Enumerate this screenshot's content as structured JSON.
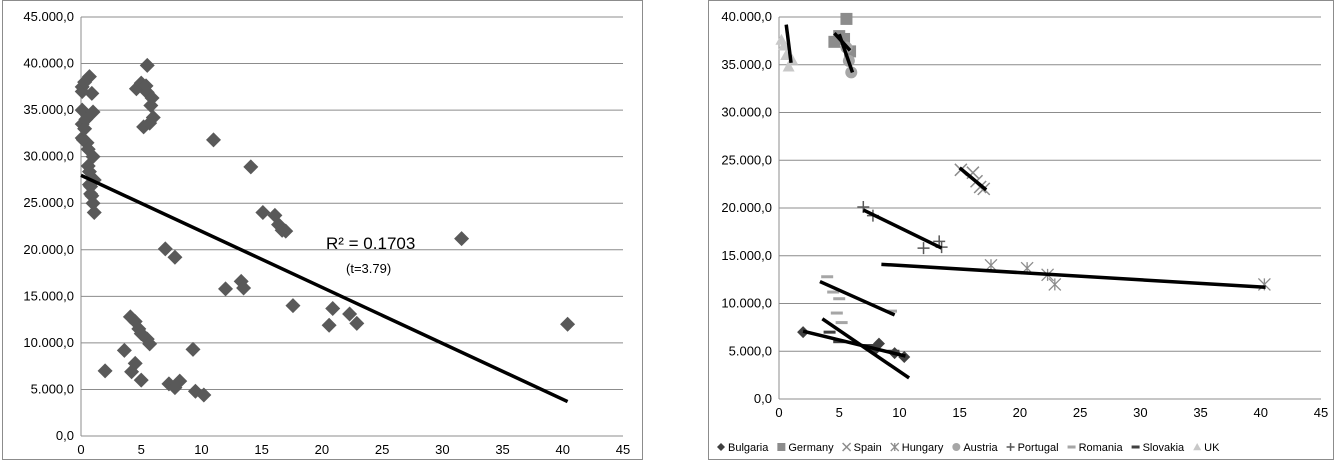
{
  "chart_data": [
    {
      "type": "scatter",
      "title": "",
      "xlabel": "",
      "ylabel": "",
      "xlim": [
        0,
        45
      ],
      "ylim": [
        0,
        45000
      ],
      "x_ticks": [
        "0",
        "5",
        "10",
        "15",
        "20",
        "25",
        "30",
        "35",
        "40",
        "45"
      ],
      "y_ticks": [
        "0,0",
        "5.000,0",
        "10.000,0",
        "15.000,0",
        "20.000,0",
        "25.000,0",
        "30.000,0",
        "35.000,0",
        "40.000,0",
        "45.000,0"
      ],
      "grid": "horizontal",
      "marker": "diamond",
      "marker_color": "#595959",
      "line_color": "#000000",
      "points": [
        [
          0.1,
          37500
        ],
        [
          0.1,
          37000
        ],
        [
          0.1,
          35000
        ],
        [
          0.1,
          33500
        ],
        [
          0.1,
          32000
        ],
        [
          0.2,
          31800
        ],
        [
          0.3,
          33000
        ],
        [
          0.3,
          38000
        ],
        [
          0.4,
          34000
        ],
        [
          0.5,
          31500
        ],
        [
          0.6,
          29000
        ],
        [
          0.6,
          30800
        ],
        [
          0.7,
          38600
        ],
        [
          0.7,
          27000
        ],
        [
          0.7,
          28400
        ],
        [
          0.8,
          26800
        ],
        [
          0.8,
          26000
        ],
        [
          0.9,
          36800
        ],
        [
          0.9,
          25800
        ],
        [
          1.0,
          34800
        ],
        [
          1.0,
          30000
        ],
        [
          1.0,
          25000
        ],
        [
          1.1,
          24000
        ],
        [
          1.1,
          27500
        ],
        [
          2.0,
          7000
        ],
        [
          3.6,
          9200
        ],
        [
          4.1,
          12800
        ],
        [
          4.2,
          6900
        ],
        [
          4.5,
          12300
        ],
        [
          4.5,
          7800
        ],
        [
          4.6,
          37300
        ],
        [
          4.8,
          11500
        ],
        [
          5.0,
          37900
        ],
        [
          5.0,
          11000
        ],
        [
          5.0,
          6000
        ],
        [
          5.2,
          33200
        ],
        [
          5.4,
          37600
        ],
        [
          5.5,
          10400
        ],
        [
          5.5,
          39800
        ],
        [
          5.5,
          36900
        ],
        [
          5.7,
          33600
        ],
        [
          5.7,
          9900
        ],
        [
          5.8,
          35500
        ],
        [
          5.9,
          36300
        ],
        [
          6.0,
          34200
        ],
        [
          7.0,
          20100
        ],
        [
          7.3,
          5600
        ],
        [
          7.8,
          19200
        ],
        [
          7.8,
          5200
        ],
        [
          8.2,
          5900
        ],
        [
          9.3,
          9300
        ],
        [
          9.5,
          4800
        ],
        [
          10.2,
          4400
        ],
        [
          11.0,
          31800
        ],
        [
          12.0,
          15800
        ],
        [
          13.3,
          16600
        ],
        [
          13.5,
          15900
        ],
        [
          14.1,
          28900
        ],
        [
          15.1,
          24000
        ],
        [
          16.1,
          23700
        ],
        [
          16.4,
          22700
        ],
        [
          16.7,
          22100
        ],
        [
          17.0,
          22000
        ],
        [
          17.6,
          14000
        ],
        [
          20.6,
          11900
        ],
        [
          20.9,
          13700
        ],
        [
          22.3,
          13100
        ],
        [
          22.9,
          12100
        ],
        [
          31.6,
          21200
        ],
        [
          40.4,
          12000
        ]
      ],
      "trendline": {
        "x": [
          0,
          40.4
        ],
        "y": [
          28000,
          3700
        ]
      },
      "annotations": {
        "r2": "R² = 0.1703",
        "t": "(t=3.79)"
      }
    },
    {
      "type": "scatter",
      "title": "",
      "xlabel": "",
      "ylabel": "",
      "xlim": [
        0,
        45
      ],
      "ylim": [
        0,
        40000
      ],
      "x_ticks": [
        "0",
        "5",
        "10",
        "15",
        "20",
        "25",
        "30",
        "35",
        "40",
        "45"
      ],
      "y_ticks": [
        "0,0",
        "5.000,0",
        "10.000,0",
        "15.000,0",
        "20.000,0",
        "25.000,0",
        "30.000,0",
        "35.000,0",
        "40.000,0"
      ],
      "grid": "horizontal",
      "legend_position": "bottom",
      "series": [
        {
          "name": "Bulgaria",
          "marker": "diamond",
          "color": "#404040",
          "points": [
            [
              2.0,
              7000
            ],
            [
              8.0,
              5200
            ],
            [
              8.3,
              5800
            ],
            [
              9.6,
              4800
            ],
            [
              10.4,
              4400
            ]
          ],
          "trend": {
            "x": [
              2.0,
              10.5
            ],
            "y": [
              7100,
              4500
            ]
          }
        },
        {
          "name": "Germany",
          "marker": "square",
          "color": "#8c8c8c",
          "points": [
            [
              4.6,
              37400
            ],
            [
              5.0,
              38000
            ],
            [
              5.4,
              37700
            ],
            [
              5.6,
              39800
            ],
            [
              5.9,
              36400
            ]
          ],
          "trend": {
            "x": [
              4.6,
              5.9
            ],
            "y": [
              38300
            ],
            "y_end": 36500
          }
        },
        {
          "name": "Spain",
          "marker": "x",
          "color": "#8c8c8c",
          "points": [
            [
              15.1,
              24000
            ],
            [
              16.1,
              23700
            ],
            [
              16.4,
              22800
            ],
            [
              16.7,
              22200
            ],
            [
              17.0,
              22000
            ]
          ],
          "trend": {
            "x": [
              15.0,
              17.2
            ],
            "y": [
              24200,
              21900
            ]
          }
        },
        {
          "name": "Hungary",
          "marker": "star",
          "color": "#8c8c8c",
          "points": [
            [
              17.6,
              14000
            ],
            [
              20.6,
              13700
            ],
            [
              22.3,
              13000
            ],
            [
              22.9,
              12000
            ],
            [
              40.3,
              12000
            ]
          ],
          "trend": {
            "x": [
              8.5,
              40.4
            ],
            "y": [
              14100,
              11700
            ]
          }
        },
        {
          "name": "Austria",
          "marker": "circle",
          "color": "#a6a6a6",
          "points": [
            [
              5.6,
              36800
            ],
            [
              5.8,
              35400
            ],
            [
              6.0,
              34200
            ]
          ],
          "trend": {
            "x": [
              5.0,
              6.1
            ],
            "y": [
              38200,
              34200
            ]
          }
        },
        {
          "name": "Portugal",
          "marker": "plus",
          "color": "#595959",
          "points": [
            [
              7.0,
              20100
            ],
            [
              7.8,
              19200
            ],
            [
              12.0,
              15800
            ],
            [
              13.3,
              16500
            ],
            [
              13.5,
              15900
            ]
          ],
          "trend": {
            "x": [
              7.0,
              13.5
            ],
            "y": [
              19800,
              15800
            ]
          }
        },
        {
          "name": "Romania",
          "marker": "dash",
          "color": "#a6a6a6",
          "points": [
            [
              4.0,
              12800
            ],
            [
              4.5,
              11200
            ],
            [
              5.0,
              10500
            ],
            [
              4.8,
              9000
            ],
            [
              5.2,
              8000
            ],
            [
              9.3,
              9200
            ]
          ],
          "trend": {
            "x": [
              3.4,
              9.6
            ],
            "y": [
              12300,
              8800
            ]
          }
        },
        {
          "name": "Slovakia",
          "marker": "dash",
          "color": "#404040",
          "points": [
            [
              4.2,
              7000
            ],
            [
              5.0,
              6000
            ],
            [
              7.5,
              5600
            ],
            [
              9.5,
              5000
            ]
          ],
          "trend": {
            "x": [
              3.6,
              10.8
            ],
            "y": [
              8400,
              2200
            ]
          }
        },
        {
          "name": "UK",
          "marker": "triangle",
          "color": "#c8c8c8",
          "points": [
            [
              0.2,
              37600
            ],
            [
              0.4,
              37000
            ],
            [
              0.6,
              36000
            ],
            [
              0.8,
              34800
            ],
            [
              1.1,
              35500
            ]
          ],
          "trend": {
            "x": [
              0.6,
              1.0
            ],
            "y": [
              39200,
              35200
            ]
          }
        }
      ]
    }
  ]
}
